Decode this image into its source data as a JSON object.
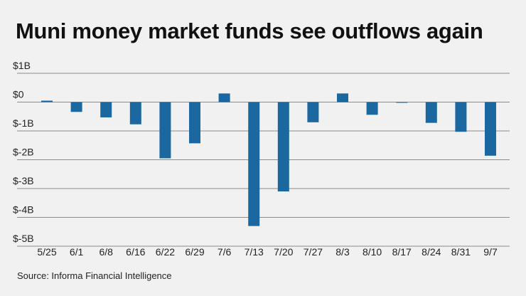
{
  "chart_data": {
    "type": "bar",
    "title": "Muni money market funds see outflows again",
    "source": "Source: Informa Financial Intelligence",
    "xlabel": "",
    "ylabel": "",
    "ylim": [
      -5,
      1
    ],
    "unit": "billions USD",
    "yticks": [
      1,
      0,
      -1,
      -2,
      -3,
      -4,
      -5
    ],
    "ytick_labels": [
      "$1B",
      "$0",
      "$-1B",
      "$-2B",
      "$-3B",
      "$-4B",
      "$-5B"
    ],
    "grid": true,
    "categories": [
      "5/25",
      "6/1",
      "6/8",
      "6/16",
      "6/22",
      "6/29",
      "7/6",
      "7/13",
      "7/20",
      "7/27",
      "8/3",
      "8/10",
      "8/17",
      "8/24",
      "8/31",
      "9/7"
    ],
    "values": [
      0.05,
      -0.34,
      -0.53,
      -0.77,
      -1.95,
      -1.43,
      0.3,
      -4.3,
      -3.1,
      -0.7,
      0.3,
      -0.44,
      -0.02,
      -0.72,
      -1.03,
      -1.86
    ],
    "bar_color": "#1b67a0",
    "grid_color": "#8c8c8c"
  }
}
